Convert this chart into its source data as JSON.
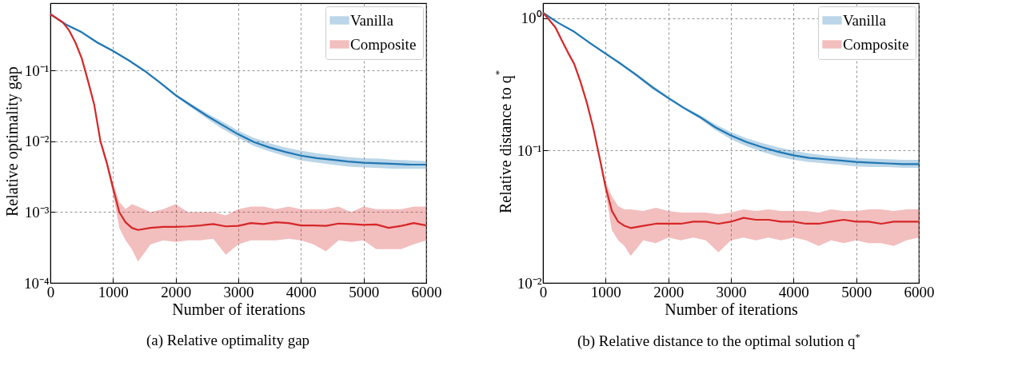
{
  "chart_data": [
    {
      "type": "line",
      "title": "(a) Relative optimality gap",
      "xlabel": "Number of iterations",
      "ylabel": "Relative optimality gap",
      "xlim": [
        0,
        6000
      ],
      "xticks": [
        0,
        1000,
        2000,
        3000,
        4000,
        5000,
        6000
      ],
      "ylim": [
        0.0001,
        0.9
      ],
      "yticks": [
        {
          "value": 0.0001,
          "label": "10⁻⁴"
        },
        {
          "value": 0.001,
          "label": "10⁻³"
        },
        {
          "value": 0.01,
          "label": "10⁻²"
        },
        {
          "value": 0.1,
          "label": "10⁻¹"
        }
      ],
      "log": "y",
      "grid": true,
      "legend": "top right",
      "series": [
        {
          "name": "Vanilla",
          "color": "#1f77b4",
          "x": [
            0,
            250,
            500,
            750,
            1000,
            1250,
            1500,
            1750,
            2000,
            2250,
            2500,
            2750,
            3000,
            3250,
            3500,
            3750,
            4000,
            4250,
            4500,
            4750,
            5000,
            5250,
            5500,
            5750,
            6000
          ],
          "values": [
            0.63,
            0.45,
            0.35,
            0.25,
            0.19,
            0.14,
            0.1,
            0.068,
            0.045,
            0.032,
            0.023,
            0.017,
            0.0126,
            0.0098,
            0.0082,
            0.0071,
            0.0063,
            0.0058,
            0.0055,
            0.0052,
            0.005,
            0.0049,
            0.0048,
            0.0047,
            0.0047
          ],
          "upper": [
            0.64,
            0.46,
            0.36,
            0.26,
            0.195,
            0.143,
            0.102,
            0.07,
            0.047,
            0.034,
            0.025,
            0.019,
            0.0142,
            0.0112,
            0.0094,
            0.0082,
            0.0074,
            0.0068,
            0.0064,
            0.006,
            0.0058,
            0.0057,
            0.0055,
            0.0054,
            0.0053
          ],
          "lower": [
            0.62,
            0.44,
            0.34,
            0.24,
            0.185,
            0.137,
            0.098,
            0.066,
            0.043,
            0.03,
            0.021,
            0.015,
            0.0112,
            0.0086,
            0.0072,
            0.0062,
            0.0054,
            0.005,
            0.0047,
            0.0044,
            0.0043,
            0.0042,
            0.0041,
            0.0041,
            0.0041
          ]
        },
        {
          "name": "Composite",
          "color": "#d62728",
          "x": [
            0,
            100,
            200,
            300,
            400,
            500,
            600,
            700,
            800,
            900,
            1000,
            1100,
            1200,
            1300,
            1400,
            1600,
            1800,
            2000,
            2200,
            2400,
            2600,
            2800,
            3000,
            3200,
            3400,
            3600,
            3800,
            4000,
            4200,
            4400,
            4600,
            4800,
            5000,
            5200,
            5400,
            5600,
            5800,
            6000
          ],
          "values": [
            0.63,
            0.55,
            0.48,
            0.37,
            0.25,
            0.15,
            0.072,
            0.033,
            0.01,
            0.005,
            0.0022,
            0.001,
            0.00072,
            0.0006,
            0.00056,
            0.0006,
            0.00062,
            0.00062,
            0.00063,
            0.00065,
            0.00068,
            0.00063,
            0.00064,
            0.0007,
            0.00068,
            0.00072,
            0.0007,
            0.00065,
            0.00065,
            0.00064,
            0.00069,
            0.00068,
            0.00066,
            0.00067,
            0.0006,
            0.00064,
            0.0007,
            0.00065
          ],
          "upper": [
            0.64,
            0.56,
            0.49,
            0.38,
            0.26,
            0.155,
            0.075,
            0.035,
            0.011,
            0.0055,
            0.0026,
            0.0014,
            0.0011,
            0.0013,
            0.0012,
            0.001,
            0.0011,
            0.0013,
            0.001,
            0.001,
            0.001,
            0.0009,
            0.0011,
            0.0012,
            0.0012,
            0.0011,
            0.0012,
            0.0011,
            0.0011,
            0.0011,
            0.0012,
            0.001,
            0.0012,
            0.0011,
            0.0011,
            0.0011,
            0.0012,
            0.0012
          ],
          "lower": [
            0.62,
            0.54,
            0.47,
            0.36,
            0.24,
            0.145,
            0.069,
            0.031,
            0.009,
            0.0045,
            0.0018,
            0.0006,
            0.0004,
            0.0003,
            0.0002,
            0.00035,
            0.0004,
            0.00038,
            0.0004,
            0.0004,
            0.00042,
            0.00025,
            0.00035,
            0.0004,
            0.0004,
            0.0004,
            0.00042,
            0.0004,
            0.00035,
            0.00028,
            0.0004,
            0.00038,
            0.0004,
            0.0003,
            0.0003,
            0.0003,
            0.00035,
            0.0004
          ]
        }
      ]
    },
    {
      "type": "line",
      "title": "(b) Relative distance to the optimal solution q$^{*}$",
      "xlabel": "Number of iterations",
      "ylabel": "Relative distance to q$^{*}$",
      "xlim": [
        0,
        6000
      ],
      "xticks": [
        0,
        1000,
        2000,
        3000,
        4000,
        5000,
        6000
      ],
      "ylim": [
        0.01,
        1.3
      ],
      "yticks": [
        {
          "value": 0.01,
          "label": "10⁻²"
        },
        {
          "value": 0.1,
          "label": "10⁻¹"
        },
        {
          "value": 1,
          "label": "10⁰"
        }
      ],
      "log": "y",
      "grid": true,
      "legend": "top right",
      "series": [
        {
          "name": "Vanilla",
          "color": "#1f77b4",
          "x": [
            0,
            250,
            500,
            750,
            1000,
            1250,
            1500,
            1750,
            2000,
            2250,
            2500,
            2750,
            3000,
            3250,
            3500,
            3750,
            4000,
            4250,
            4500,
            4750,
            5000,
            5250,
            5500,
            5750,
            6000
          ],
          "values": [
            1.1,
            0.92,
            0.79,
            0.65,
            0.54,
            0.45,
            0.37,
            0.3,
            0.25,
            0.21,
            0.18,
            0.15,
            0.13,
            0.116,
            0.106,
            0.098,
            0.092,
            0.088,
            0.086,
            0.084,
            0.082,
            0.081,
            0.08,
            0.079,
            0.079
          ],
          "upper": [
            1.11,
            0.93,
            0.8,
            0.66,
            0.55,
            0.46,
            0.38,
            0.31,
            0.255,
            0.215,
            0.186,
            0.158,
            0.138,
            0.124,
            0.114,
            0.106,
            0.1,
            0.095,
            0.092,
            0.09,
            0.088,
            0.087,
            0.086,
            0.085,
            0.085
          ],
          "lower": [
            1.09,
            0.91,
            0.78,
            0.64,
            0.53,
            0.44,
            0.36,
            0.29,
            0.245,
            0.205,
            0.174,
            0.143,
            0.122,
            0.108,
            0.098,
            0.09,
            0.085,
            0.082,
            0.08,
            0.078,
            0.076,
            0.075,
            0.075,
            0.074,
            0.074
          ]
        },
        {
          "name": "Composite",
          "color": "#d62728",
          "x": [
            0,
            100,
            200,
            300,
            400,
            500,
            600,
            700,
            800,
            900,
            1000,
            1100,
            1200,
            1300,
            1400,
            1600,
            1800,
            2000,
            2200,
            2400,
            2600,
            2800,
            3000,
            3200,
            3400,
            3600,
            3800,
            4000,
            4200,
            4400,
            4600,
            4800,
            5000,
            5200,
            5400,
            5600,
            5800,
            6000
          ],
          "values": [
            1.1,
            0.97,
            0.85,
            0.68,
            0.55,
            0.45,
            0.33,
            0.23,
            0.15,
            0.09,
            0.053,
            0.035,
            0.029,
            0.027,
            0.026,
            0.027,
            0.028,
            0.028,
            0.028,
            0.029,
            0.029,
            0.028,
            0.029,
            0.031,
            0.03,
            0.03,
            0.029,
            0.029,
            0.028,
            0.028,
            0.029,
            0.03,
            0.029,
            0.029,
            0.028,
            0.029,
            0.029,
            0.029
          ],
          "upper": [
            1.11,
            0.98,
            0.86,
            0.69,
            0.56,
            0.46,
            0.34,
            0.24,
            0.155,
            0.095,
            0.058,
            0.045,
            0.038,
            0.036,
            0.036,
            0.035,
            0.037,
            0.035,
            0.034,
            0.034,
            0.034,
            0.033,
            0.034,
            0.036,
            0.035,
            0.036,
            0.035,
            0.035,
            0.035,
            0.034,
            0.036,
            0.035,
            0.035,
            0.036,
            0.036,
            0.035,
            0.036,
            0.036
          ],
          "lower": [
            1.09,
            0.96,
            0.84,
            0.67,
            0.54,
            0.44,
            0.32,
            0.22,
            0.145,
            0.085,
            0.048,
            0.025,
            0.021,
            0.019,
            0.016,
            0.021,
            0.02,
            0.022,
            0.021,
            0.022,
            0.021,
            0.017,
            0.021,
            0.022,
            0.021,
            0.022,
            0.021,
            0.022,
            0.021,
            0.019,
            0.021,
            0.02,
            0.021,
            0.02,
            0.02,
            0.019,
            0.021,
            0.022
          ]
        }
      ]
    }
  ]
}
